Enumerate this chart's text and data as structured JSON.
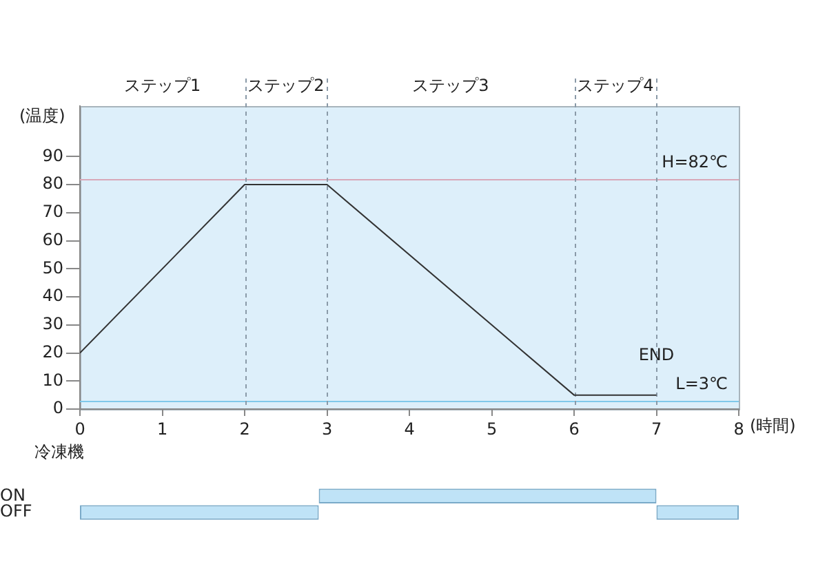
{
  "chart_data": [
    {
      "type": "line",
      "ylabel": "(温度)",
      "xlabel": "(時間)",
      "series": [
        {
          "color": "#333333",
          "x": [
            0,
            2,
            3,
            6,
            7
          ],
          "values": [
            20,
            80,
            80,
            5,
            5
          ]
        }
      ],
      "xlim": [
        0,
        8
      ],
      "xticks": [
        0,
        1,
        2,
        3,
        4,
        5,
        6,
        7,
        8
      ],
      "ylim": [
        0,
        108
      ],
      "yticks": [
        0,
        10,
        20,
        30,
        40,
        50,
        60,
        70,
        80,
        90
      ],
      "marker": "none",
      "legend": false,
      "grid": false,
      "ref_lines": [
        {
          "axis": "y",
          "value": 82,
          "label": "H=82℃",
          "color": "#d8a8b8"
        },
        {
          "axis": "y",
          "value": 3,
          "label": "L=3℃",
          "color": "#80c8ea"
        },
        {
          "axis": "x",
          "value": 2,
          "color": "#8a9aa8",
          "line_style": "dashed"
        },
        {
          "axis": "x",
          "value": 3,
          "color": "#8a9aa8",
          "line_style": "dashed"
        },
        {
          "axis": "x",
          "value": 6,
          "color": "#8a9aa8",
          "line_style": "dashed"
        },
        {
          "axis": "x",
          "value": 7,
          "color": "#8a9aa8",
          "line_style": "dashed"
        }
      ],
      "annotations": [
        "ステップ1",
        "ステップ2",
        "ステップ3",
        "ステップ4",
        {
          "text": "END",
          "x": 7,
          "y": 19
        }
      ]
    },
    {
      "type": "bar",
      "orientation": "horizontal",
      "ylabel": "冷凍機",
      "categories": [
        "ON",
        "OFF"
      ],
      "series": [
        {
          "color": "#bfe3f7",
          "base": [
            2.9,
            0
          ],
          "values": [
            4.1,
            2.9
          ]
        },
        {
          "color": "#bfe3f7",
          "base": [
            null,
            7
          ],
          "values": [
            null,
            1
          ]
        }
      ],
      "xlim": [
        0,
        8
      ],
      "tick_labels": "y",
      "legend": false,
      "grid": false
    }
  ]
}
